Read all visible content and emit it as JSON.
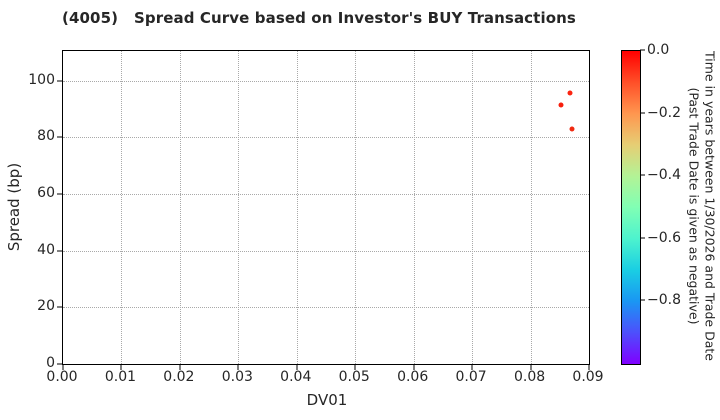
{
  "title": "(4005)   Spread Curve based on Investor's BUY Transactions",
  "chart_data": {
    "type": "scatter",
    "title": "(4005)   Spread Curve based on Investor's BUY Transactions",
    "xlabel": "DV01",
    "ylabel": "Spread (bp)",
    "xlim": [
      0.0,
      0.09
    ],
    "ylim": [
      0,
      110.5
    ],
    "grid": true,
    "xticks": [
      {
        "v": 0.0,
        "label": "0.00"
      },
      {
        "v": 0.01,
        "label": "0.01"
      },
      {
        "v": 0.02,
        "label": "0.02"
      },
      {
        "v": 0.03,
        "label": "0.03"
      },
      {
        "v": 0.04,
        "label": "0.04"
      },
      {
        "v": 0.05,
        "label": "0.05"
      },
      {
        "v": 0.06,
        "label": "0.06"
      },
      {
        "v": 0.07,
        "label": "0.07"
      },
      {
        "v": 0.08,
        "label": "0.08"
      },
      {
        "v": 0.09,
        "label": "0.09"
      }
    ],
    "yticks": [
      {
        "v": 0,
        "label": "0"
      },
      {
        "v": 20,
        "label": "20"
      },
      {
        "v": 40,
        "label": "40"
      },
      {
        "v": 60,
        "label": "60"
      },
      {
        "v": 80,
        "label": "80"
      },
      {
        "v": 100,
        "label": "100"
      }
    ],
    "points": [
      {
        "x": 0.0868,
        "y": 95.5,
        "c": -0.02,
        "color": "#fb2410"
      },
      {
        "x": 0.0852,
        "y": 91.6,
        "c": -0.02,
        "color": "#f71e0c"
      },
      {
        "x": 0.0871,
        "y": 82.9,
        "c": -0.03,
        "color": "#f02a11"
      }
    ],
    "colorbar": {
      "label_line1": "Time in years between 1/30/2026 and Trade Date",
      "label_line2": "(Past Trade Date is given as negative)",
      "range_top_to_bottom": [
        0.0,
        -1.0
      ],
      "ticks": [
        {
          "v": 0.0,
          "label": "0.0"
        },
        {
          "v": -0.2,
          "label": "−0.2"
        },
        {
          "v": -0.4,
          "label": "−0.4"
        },
        {
          "v": -0.6,
          "label": "−0.6"
        },
        {
          "v": -0.8,
          "label": "−0.8"
        }
      ],
      "gradient_top_to_bottom": [
        "#ff0000",
        "#ff4f28",
        "#ff964f",
        "#e6ce74",
        "#b3f396",
        "#80ffb4",
        "#4df3ce",
        "#1acee3",
        "#1a96f3",
        "#4d4ffc",
        "#8000ff"
      ]
    },
    "colors": {
      "grid": "#a9a9a9",
      "axis": "#000000",
      "text": "#262626"
    }
  }
}
